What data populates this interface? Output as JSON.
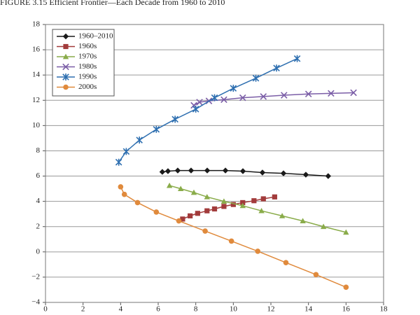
{
  "chart_data": {
    "type": "line",
    "title": "FIGURE 3.15   Efficient Frontier—Each Decade from 1960 to 2010",
    "xlim": [
      0,
      18
    ],
    "xticks": [
      0,
      2,
      4,
      6,
      8,
      10,
      12,
      14,
      16,
      18
    ],
    "ylim": [
      -4,
      18
    ],
    "yticks": [
      {
        "value": -4,
        "label": "−4"
      },
      {
        "value": -2,
        "label": "−2"
      },
      0,
      2,
      4,
      6,
      8,
      10,
      12,
      14,
      16,
      18
    ],
    "grid": true,
    "legend": "upper left",
    "series": [
      {
        "name": "1960–2010",
        "color": "#1a1a1a",
        "marker": "diamond",
        "x": [
          6.22,
          6.52,
          7.04,
          7.75,
          8.61,
          9.58,
          10.51,
          11.55,
          12.67,
          13.86,
          15.05
        ],
        "values": [
          6.33,
          6.39,
          6.44,
          6.44,
          6.44,
          6.44,
          6.39,
          6.28,
          6.22,
          6.11,
          6.0
        ]
      },
      {
        "name": "1960s",
        "color": "#a23b3b",
        "marker": "square",
        "x": [
          7.3,
          7.7,
          8.1,
          8.6,
          9.0,
          9.5,
          10.0,
          10.5,
          11.1,
          11.6,
          12.2
        ],
        "values": [
          2.6,
          2.85,
          3.05,
          3.25,
          3.4,
          3.6,
          3.75,
          3.9,
          4.05,
          4.2,
          4.35
        ]
      },
      {
        "name": "1970s",
        "color": "#8aac4a",
        "marker": "triangle",
        "x": [
          6.6,
          7.2,
          7.9,
          8.6,
          9.5,
          10.5,
          11.5,
          12.6,
          13.7,
          14.8,
          16.0
        ],
        "values": [
          5.25,
          5.0,
          4.7,
          4.35,
          4.0,
          3.65,
          3.25,
          2.85,
          2.45,
          2.0,
          1.55
        ]
      },
      {
        "name": "1980s",
        "color": "#7b5ea7",
        "marker": "x",
        "x": [
          7.9,
          8.2,
          8.7,
          9.5,
          10.5,
          11.6,
          12.7,
          14.0,
          15.2,
          16.4
        ],
        "values": [
          11.6,
          11.85,
          11.95,
          12.05,
          12.2,
          12.3,
          12.4,
          12.5,
          12.55,
          12.6
        ]
      },
      {
        "name": "1990s",
        "color": "#2e6fb0",
        "marker": "star",
        "x": [
          3.9,
          4.3,
          5.0,
          5.9,
          6.9,
          8.0,
          9.0,
          10.0,
          11.2,
          12.3,
          13.4
        ],
        "values": [
          7.1,
          7.95,
          8.85,
          9.7,
          10.5,
          11.3,
          12.2,
          12.95,
          13.75,
          14.55,
          15.3
        ]
      },
      {
        "name": "2000s",
        "color": "#e08a3c",
        "marker": "circle",
        "x": [
          4.0,
          4.2,
          4.9,
          5.9,
          7.1,
          8.5,
          9.9,
          11.3,
          12.8,
          14.4,
          16.0
        ],
        "values": [
          5.15,
          4.55,
          3.9,
          3.15,
          2.45,
          1.65,
          0.85,
          0.05,
          -0.85,
          -1.8,
          -2.8
        ]
      }
    ]
  }
}
